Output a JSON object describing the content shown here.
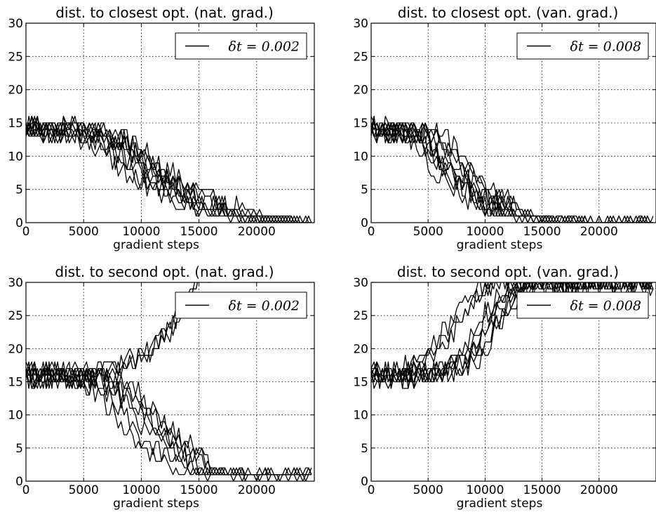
{
  "chart_data": [
    {
      "type": "line",
      "title": "dist. to closest opt. (nat. grad.)",
      "xlabel": "gradient steps",
      "ylabel": "",
      "xlim": [
        0,
        25000
      ],
      "ylim": [
        0,
        30
      ],
      "x_ticks": [
        "0",
        "5000",
        "10000",
        "15000",
        "20000"
      ],
      "y_ticks": [
        "0",
        "5",
        "10",
        "15",
        "20",
        "25",
        "30"
      ],
      "grid": true,
      "legend": {
        "label": "δt = 0.002",
        "position": "top-right"
      },
      "series_count": 10,
      "behavior": "decreasing",
      "x_samples": [
        0,
        2500,
        5000,
        7500,
        10000,
        12500,
        15000,
        17500,
        20000,
        22500,
        25000
      ],
      "median_values": [
        14,
        14,
        13.5,
        12,
        8,
        5,
        3,
        1.5,
        0.5,
        0,
        0
      ],
      "x": [],
      "series": []
    },
    {
      "type": "line",
      "title": "dist. to closest opt. (van. grad.)",
      "xlabel": "gradient steps",
      "ylabel": "",
      "xlim": [
        0,
        25000
      ],
      "ylim": [
        0,
        30
      ],
      "x_ticks": [
        "0",
        "5000",
        "10000",
        "15000",
        "20000"
      ],
      "y_ticks": [
        "0",
        "5",
        "10",
        "15",
        "20",
        "25",
        "30"
      ],
      "grid": true,
      "legend": {
        "label": "δt = 0.008",
        "position": "top-right"
      },
      "series_count": 10,
      "behavior": "decreasing",
      "x_samples": [
        0,
        2500,
        5000,
        7500,
        10000,
        12500,
        15000,
        17500,
        20000,
        22500,
        25000
      ],
      "median_values": [
        14,
        14,
        13,
        8,
        4,
        1.5,
        0.5,
        0.2,
        0,
        0,
        0
      ],
      "x": [],
      "series": []
    },
    {
      "type": "line",
      "title": "dist. to second opt. (nat. grad.)",
      "xlabel": "gradient steps",
      "ylabel": "",
      "xlim": [
        0,
        25000
      ],
      "ylim": [
        0,
        30
      ],
      "x_ticks": [
        "0",
        "5000",
        "10000",
        "15000",
        "20000"
      ],
      "y_ticks": [
        "0",
        "5",
        "10",
        "15",
        "20",
        "25",
        "30"
      ],
      "grid": true,
      "legend": {
        "label": "δt = 0.002",
        "position": "top-right"
      },
      "series_count": 10,
      "behavior": "mixed: some rise past 30, most fall to ~0-1",
      "x_samples": [
        0,
        2500,
        5000,
        7500,
        10000,
        12500,
        15000,
        17500,
        20000,
        22500,
        25000
      ],
      "median_values": [
        16,
        16,
        15.5,
        13,
        8,
        4,
        1.5,
        1,
        1,
        1,
        1
      ],
      "x": [],
      "series": []
    },
    {
      "type": "line",
      "title": "dist. to second opt. (van. grad.)",
      "xlabel": "gradient steps",
      "ylabel": "",
      "xlim": [
        0,
        25000
      ],
      "ylim": [
        0,
        30
      ],
      "x_ticks": [
        "0",
        "5000",
        "10000",
        "15000",
        "20000"
      ],
      "y_ticks": [
        "0",
        "5",
        "10",
        "15",
        "20",
        "25",
        "30"
      ],
      "grid": true,
      "legend": {
        "label": "δt = 0.008",
        "position": "top-right"
      },
      "series_count": 10,
      "behavior": "increasing",
      "x_samples": [
        0,
        2500,
        5000,
        7500,
        10000,
        12500,
        15000,
        17500,
        20000,
        22500,
        25000
      ],
      "median_values": [
        16,
        16,
        16.5,
        19,
        26,
        30,
        30,
        30,
        30,
        30,
        30
      ],
      "x": [],
      "series": []
    }
  ]
}
